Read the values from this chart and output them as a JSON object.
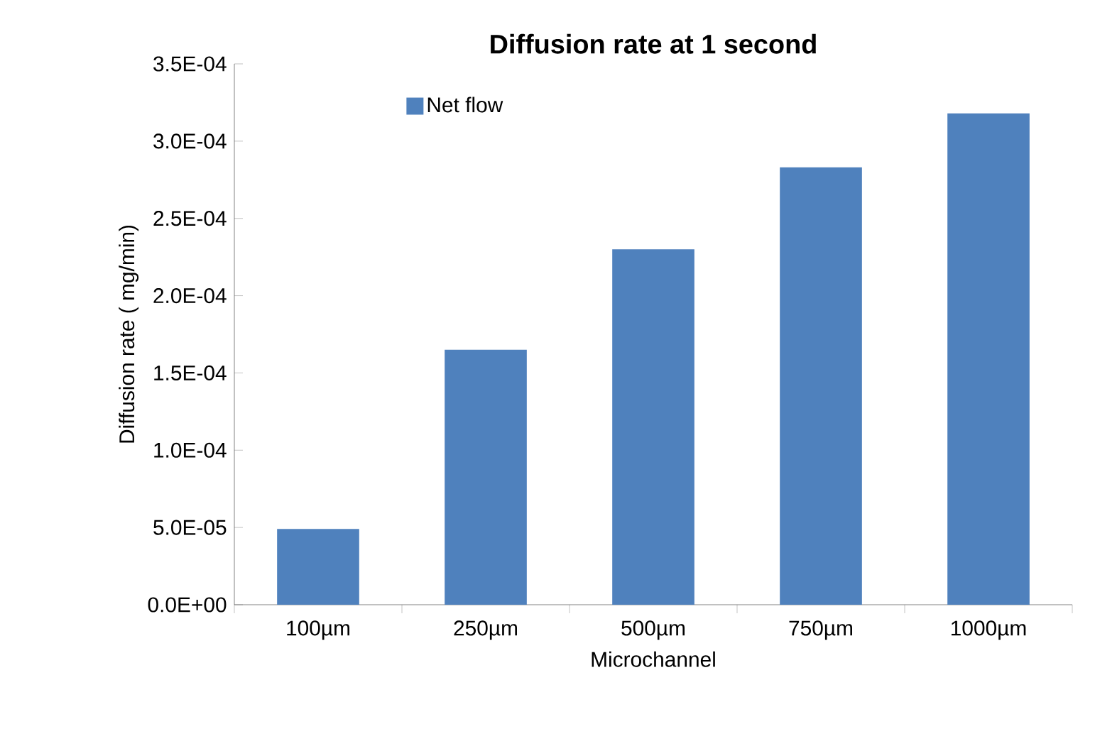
{
  "chart_data": {
    "type": "bar",
    "title": "Diffusion rate at 1 second",
    "xlabel": "Microchannel",
    "ylabel": "Diffusion rate ( mg/min)",
    "categories": [
      "100µm",
      "250µm",
      "500µm",
      "750µm",
      "1000µm"
    ],
    "series": [
      {
        "name": "Net flow",
        "color": "#4f81bd",
        "values": [
          4.9e-05,
          0.000165,
          0.00023,
          0.000283,
          0.000318
        ]
      }
    ],
    "ylim": [
      0,
      0.00035
    ],
    "yticks": [
      {
        "value": 0,
        "label": "0.0E+00"
      },
      {
        "value": 5e-05,
        "label": "5.0E-05"
      },
      {
        "value": 0.0001,
        "label": "1.0E-04"
      },
      {
        "value": 0.00015,
        "label": "1.5E-04"
      },
      {
        "value": 0.0002,
        "label": "2.0E-04"
      },
      {
        "value": 0.00025,
        "label": "2.5E-04"
      },
      {
        "value": 0.0003,
        "label": "3.0E-04"
      },
      {
        "value": 0.00035,
        "label": "3.5E-04"
      }
    ],
    "grid": false,
    "legend": "top left"
  }
}
